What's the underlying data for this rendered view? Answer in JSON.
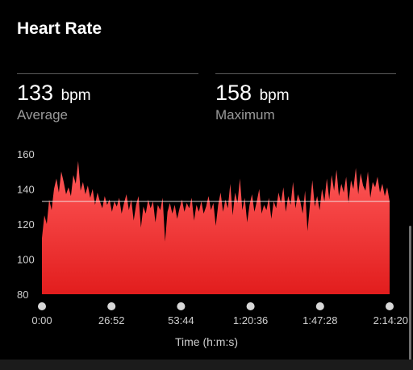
{
  "header": {
    "title": "Heart Rate"
  },
  "stats": {
    "average": {
      "value": "133",
      "unit": "bpm",
      "label": "Average"
    },
    "maximum": {
      "value": "158",
      "unit": "bpm",
      "label": "Maximum"
    }
  },
  "colors": {
    "fill_top": "#ff5a5a",
    "fill_bottom": "#e21d1d",
    "average_line": "#f2f2f2",
    "background": "#000000"
  },
  "chart_data": {
    "type": "area",
    "title": "",
    "xlabel": "Time (h:m:s)",
    "ylabel": "",
    "ylim": [
      80,
      160
    ],
    "y_ticks": [
      "160",
      "140",
      "120",
      "100",
      "80"
    ],
    "x_ticks": [
      "0:00",
      "26:52",
      "53:44",
      "1:20:36",
      "1:47:28",
      "2:14:20"
    ],
    "average_line": 133,
    "series": [
      {
        "values": [
          112,
          125,
          120,
          134,
          128,
          140,
          146,
          138,
          150,
          144,
          137,
          141,
          136,
          148,
          143,
          156,
          139,
          144,
          137,
          142,
          135,
          140,
          131,
          138,
          133,
          129,
          136,
          131,
          134,
          127,
          133,
          130,
          135,
          126,
          132,
          137,
          128,
          134,
          122,
          131,
          136,
          118,
          130,
          126,
          134,
          129,
          133,
          121,
          131,
          128,
          135,
          110,
          127,
          132,
          126,
          131,
          123,
          129,
          134,
          127,
          132,
          129,
          135,
          122,
          131,
          127,
          133,
          126,
          130,
          136,
          128,
          132,
          119,
          131,
          138,
          127,
          134,
          129,
          143,
          125,
          138,
          132,
          146,
          128,
          135,
          121,
          131,
          137,
          127,
          133,
          140,
          126,
          131,
          128,
          135,
          123,
          133,
          129,
          138,
          132,
          141,
          127,
          136,
          131,
          144,
          129,
          137,
          133,
          126,
          139,
          116,
          131,
          145,
          130,
          136,
          128,
          140,
          133,
          146,
          134,
          148,
          139,
          151,
          136,
          143,
          138,
          147,
          132,
          145,
          140,
          152,
          137,
          149,
          142,
          139,
          150,
          135,
          144,
          141,
          147,
          138,
          143,
          136,
          141,
          133
        ]
      }
    ]
  }
}
